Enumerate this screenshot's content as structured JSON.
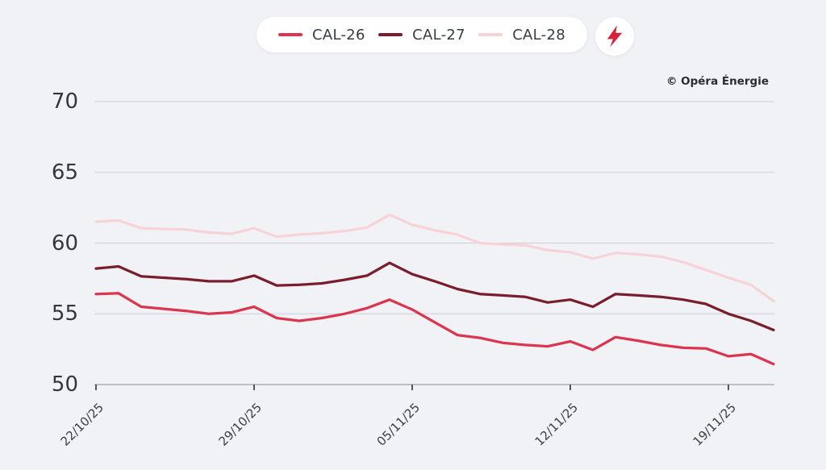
{
  "page": {
    "credit": "© Opéra Énergie"
  },
  "colors": {
    "background": "#f1f2f6",
    "gridline": "#cdced3",
    "axis_line": "#aeafb4",
    "tick_mark": "#55565a",
    "y_label_text": "#33363b",
    "x_label_text": "#3b3e43",
    "legend_text": "#383c42",
    "legend_background": "#ffffff",
    "credit_text": "#2b2c30",
    "bolt": "#d5233c"
  },
  "legend": {
    "bolt_icon": "lightning-bolt"
  },
  "chart_data": {
    "type": "line",
    "title": "",
    "xlabel": "",
    "ylabel": "",
    "grid": "horizontal-only",
    "legend_position": "top-center",
    "ylim": [
      50,
      70
    ],
    "yticks": [
      50,
      55,
      60,
      65,
      70
    ],
    "xtick_labels": [
      "22/10/25",
      "29/10/25",
      "05/11/25",
      "12/11/25",
      "19/11/25"
    ],
    "xtick_indices": [
      0,
      7,
      14,
      21,
      28
    ],
    "x": [
      "22/10/25",
      "23/10/25",
      "24/10/25",
      "25/10/25",
      "26/10/25",
      "27/10/25",
      "28/10/25",
      "29/10/25",
      "30/10/25",
      "31/10/25",
      "01/11/25",
      "02/11/25",
      "03/11/25",
      "04/11/25",
      "05/11/25",
      "06/11/25",
      "07/11/25",
      "08/11/25",
      "09/11/25",
      "10/11/25",
      "11/11/25",
      "12/11/25",
      "13/11/25",
      "14/11/25",
      "15/11/25",
      "16/11/25",
      "17/11/25",
      "18/11/25",
      "19/11/25",
      "20/11/25",
      "21/11/25"
    ],
    "series": [
      {
        "name": "CAL-26",
        "color": "#d9364f",
        "values": [
          56.4,
          56.45,
          55.5,
          55.35,
          55.2,
          55.0,
          55.1,
          55.5,
          54.7,
          54.5,
          54.7,
          55.0,
          55.4,
          56.0,
          55.3,
          54.4,
          53.5,
          53.3,
          52.95,
          52.8,
          52.7,
          53.05,
          52.45,
          53.35,
          53.1,
          52.8,
          52.6,
          52.55,
          52.0,
          52.15,
          51.45
        ]
      },
      {
        "name": "CAL-27",
        "color": "#7a1e2d",
        "values": [
          58.2,
          58.35,
          57.65,
          57.55,
          57.45,
          57.3,
          57.3,
          57.7,
          57.0,
          57.05,
          57.15,
          57.4,
          57.7,
          58.6,
          57.8,
          57.3,
          56.75,
          56.4,
          56.3,
          56.2,
          55.8,
          56.0,
          55.5,
          56.4,
          56.3,
          56.2,
          56.0,
          55.7,
          55.0,
          54.5,
          53.85
        ]
      },
      {
        "name": "CAL-28",
        "color": "#f7d3d8",
        "values": [
          61.5,
          61.6,
          61.05,
          61.0,
          60.95,
          60.75,
          60.65,
          61.05,
          60.45,
          60.6,
          60.7,
          60.85,
          61.1,
          62.0,
          61.3,
          60.9,
          60.6,
          60.0,
          59.9,
          59.85,
          59.5,
          59.35,
          58.9,
          59.3,
          59.2,
          59.05,
          58.65,
          58.1,
          57.55,
          57.05,
          55.9
        ]
      }
    ]
  }
}
